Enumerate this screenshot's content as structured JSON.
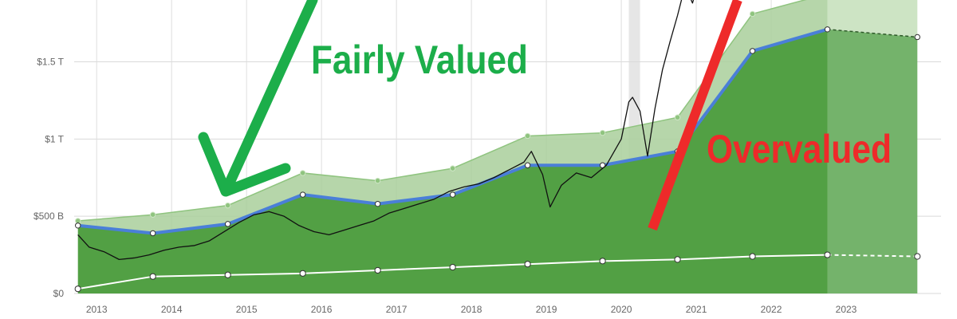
{
  "chart_data": {
    "type": "area",
    "title": "",
    "xlabel": "",
    "ylabel": "",
    "xlim": [
      2012.7,
      2024.0
    ],
    "ylim": [
      0,
      1.9
    ],
    "y_unit": "trillion USD",
    "grid": true,
    "legend": "none",
    "x_ticks": [
      {
        "value": 2013,
        "label": "2013"
      },
      {
        "value": 2014,
        "label": "2014"
      },
      {
        "value": 2015,
        "label": "2015"
      },
      {
        "value": 2016,
        "label": "2016"
      },
      {
        "value": 2017,
        "label": "2017"
      },
      {
        "value": 2018,
        "label": "2018"
      },
      {
        "value": 2019,
        "label": "2019"
      },
      {
        "value": 2020,
        "label": "2020"
      },
      {
        "value": 2021,
        "label": "2021"
      },
      {
        "value": 2022,
        "label": "2022"
      },
      {
        "value": 2023,
        "label": "2023"
      }
    ],
    "y_ticks": [
      {
        "value": 0,
        "label": "$0"
      },
      {
        "value": 0.5,
        "label": "$500 B"
      },
      {
        "value": 1.0,
        "label": "$1 T"
      },
      {
        "value": 1.5,
        "label": "$1.5 T"
      }
    ],
    "series": [
      {
        "key": "upper_band",
        "x": [
          2012.75,
          2013.75,
          2014.75,
          2015.75,
          2016.75,
          2017.75,
          2018.75,
          2019.75,
          2020.75,
          2021.75,
          2022.75,
          2023.95
        ],
        "values": [
          0.47,
          0.51,
          0.57,
          0.78,
          0.73,
          0.81,
          1.02,
          1.04,
          1.14,
          1.81,
          1.94,
          2.0
        ],
        "projected_from_index": 10,
        "color": "#a9cf9b"
      },
      {
        "key": "fair_value",
        "x": [
          2012.75,
          2013.75,
          2014.75,
          2015.75,
          2016.75,
          2017.75,
          2018.75,
          2019.75,
          2020.75,
          2021.75,
          2022.75,
          2023.95
        ],
        "values": [
          0.44,
          0.39,
          0.45,
          0.64,
          0.58,
          0.64,
          0.83,
          0.83,
          0.92,
          1.57,
          1.71,
          1.66
        ],
        "projected_from_index": 10,
        "color": "#4a7fd8",
        "fill": "#52a044"
      },
      {
        "key": "lower_line",
        "x": [
          2012.75,
          2013.75,
          2014.75,
          2015.75,
          2016.75,
          2017.75,
          2018.75,
          2019.75,
          2020.75,
          2021.75,
          2022.75,
          2023.95
        ],
        "values": [
          0.03,
          0.11,
          0.12,
          0.13,
          0.15,
          0.17,
          0.19,
          0.21,
          0.22,
          0.24,
          0.25,
          0.24
        ],
        "projected_from_index": 10,
        "color": "#ffffff"
      },
      {
        "key": "market_cap",
        "x": [
          2012.75,
          2012.9,
          2013.1,
          2013.3,
          2013.5,
          2013.7,
          2013.9,
          2014.1,
          2014.3,
          2014.5,
          2014.7,
          2014.9,
          2015.1,
          2015.3,
          2015.5,
          2015.7,
          2015.9,
          2016.1,
          2016.3,
          2016.5,
          2016.7,
          2016.9,
          2017.1,
          2017.3,
          2017.5,
          2017.7,
          2017.9,
          2018.1,
          2018.3,
          2018.5,
          2018.7,
          2018.8,
          2018.95,
          2019.05,
          2019.2,
          2019.4,
          2019.6,
          2019.8,
          2020.0,
          2020.1,
          2020.15,
          2020.25,
          2020.35,
          2020.45,
          2020.55,
          2020.65,
          2020.75,
          2020.85,
          2020.95,
          2021.05,
          2021.15
        ],
        "values": [
          0.38,
          0.3,
          0.27,
          0.22,
          0.23,
          0.25,
          0.28,
          0.3,
          0.31,
          0.34,
          0.4,
          0.46,
          0.51,
          0.53,
          0.5,
          0.44,
          0.4,
          0.38,
          0.41,
          0.44,
          0.47,
          0.52,
          0.55,
          0.58,
          0.61,
          0.66,
          0.69,
          0.71,
          0.75,
          0.8,
          0.85,
          0.92,
          0.77,
          0.56,
          0.7,
          0.78,
          0.75,
          0.83,
          1.0,
          1.24,
          1.27,
          1.18,
          0.89,
          1.2,
          1.45,
          1.63,
          1.8,
          1.99,
          1.88,
          2.05,
          2.1
        ],
        "color": "#111111"
      }
    ],
    "shaded_x_range": [
      2020.1,
      2020.25
    ],
    "projection_x_range": [
      2022.75,
      2023.95
    ],
    "annotations": [
      {
        "text": "Fairly Valued",
        "color": "#1cae4a"
      },
      {
        "text": "Overvalued",
        "color": "#ee2a2a"
      }
    ]
  }
}
